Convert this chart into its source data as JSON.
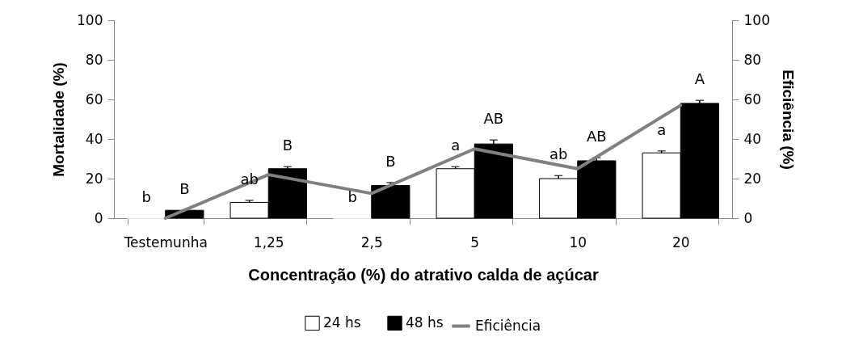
{
  "chart_data": {
    "type": "bar",
    "xlabel": "Concentração (%) do atrativo calda de açúcar",
    "ylabel": "Mortalidade (%)",
    "y2label": "Eficiência (%)",
    "categories": [
      "Testemunha",
      "1,25",
      "2,5",
      "5",
      "10",
      "20"
    ],
    "series": [
      {
        "name": "24 hs",
        "color": "#ffffff",
        "values": [
          0,
          8,
          0,
          25,
          20,
          33
        ],
        "errors": [
          null,
          [
            8,
            9
          ],
          null,
          [
            25,
            26
          ],
          [
            20,
            21.5
          ],
          [
            33,
            34
          ]
        ],
        "value_labels": [
          "b",
          "ab",
          "b",
          "a",
          "ab",
          "a"
        ]
      },
      {
        "name": "48 hs",
        "color": "#000000",
        "values": [
          4,
          25,
          16.5,
          37.5,
          29,
          58
        ],
        "errors": [
          null,
          [
            25,
            26
          ],
          [
            16.5,
            18
          ],
          [
            37.5,
            39.5
          ],
          [
            29,
            30.5
          ],
          [
            58,
            59.5
          ]
        ],
        "value_labels": [
          "B",
          "B",
          "B",
          "AB",
          "AB",
          "A"
        ]
      },
      {
        "name": "Eficiência",
        "type": "line",
        "axis": "y2",
        "color": "#808080",
        "values": [
          0,
          22,
          12.5,
          35,
          25,
          57
        ]
      }
    ],
    "ylim": [
      0,
      100
    ],
    "yticks": [
      0,
      20,
      40,
      60,
      80,
      100
    ],
    "y2lim": [
      0,
      100
    ],
    "y2ticks": [
      0,
      20,
      40,
      60,
      80,
      100
    ],
    "legend": "bottom"
  }
}
